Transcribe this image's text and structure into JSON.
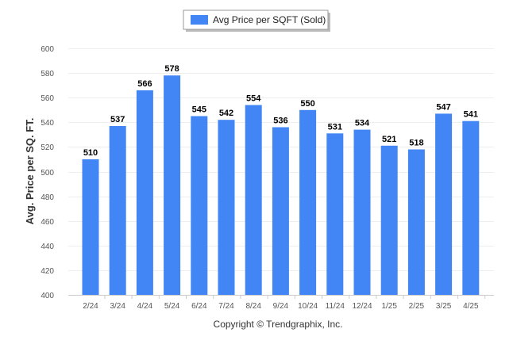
{
  "chart_data": {
    "type": "bar",
    "categories": [
      "2/24",
      "3/24",
      "4/24",
      "5/24",
      "6/24",
      "7/24",
      "8/24",
      "9/24",
      "10/24",
      "11/24",
      "12/24",
      "1/25",
      "2/25",
      "3/25",
      "4/25"
    ],
    "series": [
      {
        "name": "Avg Price per SQFT (Sold)",
        "values": [
          510,
          537,
          566,
          578,
          545,
          542,
          554,
          536,
          550,
          531,
          534,
          521,
          518,
          547,
          541
        ]
      }
    ],
    "title": "",
    "xlabel": "",
    "ylabel": "Avg. Price per SQ. FT.",
    "ylim": [
      400,
      600
    ],
    "yticks": [
      400,
      420,
      440,
      460,
      480,
      500,
      520,
      540,
      560,
      580,
      600
    ],
    "grid": true,
    "legend": "top-center",
    "data_labels": true,
    "bar_color": "#4285f4"
  },
  "footer": {
    "copyright": "Copyright © Trendgraphix, Inc."
  }
}
